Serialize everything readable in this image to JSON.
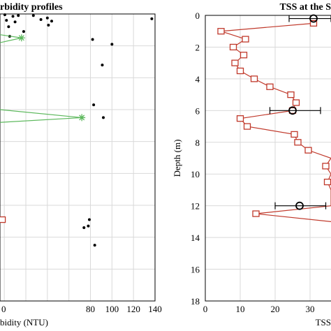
{
  "chart_data": [
    {
      "type": "scatter",
      "title": "rbidity profiles",
      "xlabel": "bidity (NTU)",
      "ylabel": "",
      "xlim": [
        -4,
        140
      ],
      "ylim": [
        18,
        0
      ],
      "xticks": [
        0,
        20,
        40,
        60,
        80,
        100,
        120,
        140
      ],
      "xtick_labels": [
        "",
        "",
        "",
        "",
        "80",
        "100",
        "120",
        "140"
      ],
      "xtick_labels_partial": [
        "0"
      ],
      "grid": true,
      "colors": {
        "points": "#000000",
        "profile": "#5cb85c",
        "marker": "#c0392b"
      },
      "series": [
        {
          "marker": "dot",
          "points": [
            [
              0.5,
              0.05
            ],
            [
              8,
              0.15
            ],
            [
              13,
              0.1
            ],
            [
              2,
              0.4
            ],
            [
              10,
              0.5
            ],
            [
              27,
              0.1
            ],
            [
              34,
              0.35
            ],
            [
              40,
              0.25
            ],
            [
              44,
              0.45
            ],
            [
              41,
              0.7
            ],
            [
              137,
              0.3
            ],
            [
              4,
              0.8
            ],
            [
              18,
              1.1
            ],
            [
              5,
              1.4
            ],
            [
              82,
              1.6
            ],
            [
              100,
              1.9
            ],
            [
              91,
              3.2
            ],
            [
              83,
              5.7
            ],
            [
              92,
              6.5
            ],
            [
              79,
              12.9
            ],
            [
              74,
              13.4
            ],
            [
              78,
              13.3
            ],
            [
              84,
              14.5
            ]
          ]
        },
        {
          "marker": "star-line",
          "points": [
            [
              -4,
              1.3
            ],
            [
              16,
              1.5
            ],
            [
              -4,
              1.8
            ]
          ]
        },
        {
          "marker": "star-line",
          "points": [
            [
              -4,
              6.0
            ],
            [
              72,
              6.5
            ],
            [
              -4,
              6.8
            ]
          ]
        },
        {
          "marker": "square",
          "points": [
            [
              -2,
              12.9
            ]
          ]
        }
      ]
    },
    {
      "type": "line",
      "title": "TSS at the S",
      "xlabel": "TSS",
      "ylabel": "Depth (m)",
      "xlim": [
        0,
        36
      ],
      "ylim": [
        18,
        0
      ],
      "xticks": [
        0,
        10,
        20,
        30
      ],
      "yticks": [
        0,
        2,
        4,
        6,
        8,
        10,
        12,
        14,
        16,
        18
      ],
      "grid": true,
      "colors": {
        "line": "#c0392b",
        "mean": "#000000",
        "error": "#000000"
      },
      "series": [
        {
          "name": "",
          "marker": "square",
          "points": [
            [
              31,
              0.5
            ],
            [
              4.5,
              1.0
            ],
            [
              11.5,
              1.5
            ],
            [
              8,
              2.0
            ],
            [
              11,
              2.5
            ],
            [
              8.5,
              3.0
            ],
            [
              10,
              3.5
            ],
            [
              14,
              4.0
            ],
            [
              18.5,
              4.5
            ],
            [
              24.5,
              5.0
            ],
            [
              26,
              5.5
            ],
            [
              25,
              6.0
            ],
            [
              10,
              6.5
            ],
            [
              12,
              7.0
            ],
            [
              25.5,
              7.5
            ],
            [
              26.5,
              8.0
            ],
            [
              29.5,
              8.5
            ],
            [
              36,
              9.0
            ],
            [
              34.5,
              9.5
            ],
            [
              36,
              10.0
            ],
            [
              35,
              10.5
            ],
            [
              36,
              11.0
            ],
            [
              36,
              12.0
            ],
            [
              14.5,
              12.5
            ],
            [
              36,
              13.0
            ]
          ]
        },
        {
          "marker": "circle-errorbar",
          "points": [
            {
              "x": 31,
              "y": 0.2,
              "xerr": [
                24,
                36
              ]
            },
            {
              "x": 25,
              "y": 6.0,
              "xerr": [
                18.5,
                33
              ]
            },
            {
              "x": 27,
              "y": 12.0,
              "xerr": [
                20,
                34.5
              ]
            }
          ]
        }
      ]
    }
  ]
}
